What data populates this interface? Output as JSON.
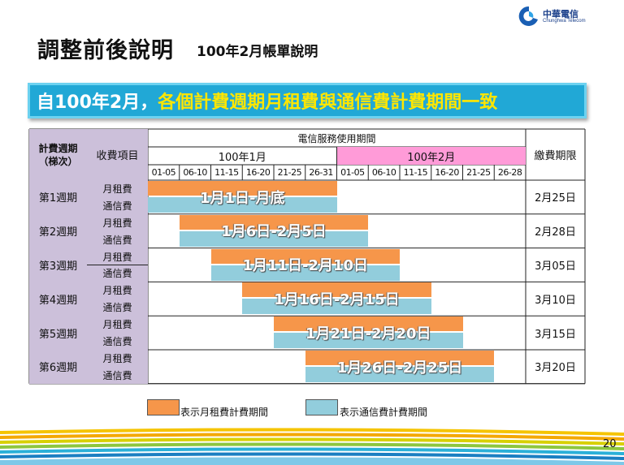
{
  "logo": {
    "name": "中華電信",
    "name_en": "Chunghwa Telecom"
  },
  "title": {
    "main": "調整前後說明",
    "sub": "100年2月帳單說明"
  },
  "banner": {
    "part1": "自100年2月，",
    "part2": "各個計費週期月租費與通信費計費期間一致"
  },
  "table": {
    "header": {
      "cycle": "計費週期\n（梯次）",
      "item": "收費項目",
      "service_period": "電信服務使用期間",
      "month1": "100年1月",
      "month2": "100年2月",
      "due": "繳費期限",
      "ranges": [
        "01-05",
        "06-10",
        "11-15",
        "16-20",
        "21-25",
        "26-31",
        "01-05",
        "06-10",
        "11-15",
        "16-20",
        "21-25",
        "26-28"
      ]
    },
    "fee_labels": {
      "monthly": "月租費",
      "comm": "通信費"
    },
    "rows": [
      {
        "cycle": "第1週期",
        "period": "1月1日-月底",
        "due": "2月25日",
        "start": 0
      },
      {
        "cycle": "第2週期",
        "period": "1月6日-2月5日",
        "due": "2月28日",
        "start": 1
      },
      {
        "cycle": "第3週期",
        "period": "1月11日-2月10日",
        "due": "3月05日",
        "start": 2
      },
      {
        "cycle": "第4週期",
        "period": "1月16日-2月15日",
        "due": "3月10日",
        "start": 3
      },
      {
        "cycle": "第5週期",
        "period": "1月21日-2月20日",
        "due": "3月15日",
        "start": 4
      },
      {
        "cycle": "第6週期",
        "period": "1月26日-2月25日",
        "due": "3月20日",
        "start": 5
      }
    ]
  },
  "legend": {
    "monthly": "表示月租費計費期間",
    "comm": "表示通信費計費期間"
  },
  "colors": {
    "monthly": "#f6964a",
    "comm": "#92cddc",
    "banner": "#21a8d6",
    "highlight": "#ffe600"
  },
  "page_number": "20"
}
